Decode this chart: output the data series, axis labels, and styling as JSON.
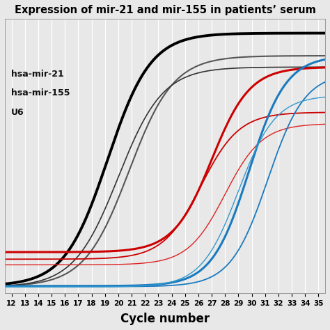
{
  "title": "Expression of mir-21 and mir-155 in patients’ serum",
  "xlabel": "Cycle number",
  "xlim": [
    11.5,
    35.5
  ],
  "xticks": [
    12,
    13,
    14,
    15,
    16,
    17,
    18,
    19,
    20,
    21,
    22,
    23,
    24,
    25,
    26,
    27,
    28,
    29,
    30,
    31,
    32,
    33,
    34,
    35
  ],
  "ylim": [
    -0.02,
    0.95
  ],
  "legend_labels": [
    "hsa-mir-21",
    "hsa-mir-155",
    "U6"
  ],
  "background_color": "#e8e8e8",
  "grid_color": "#ffffff",
  "curves": [
    {
      "color": "#000000",
      "lw": 2.8,
      "midpoint": 19.2,
      "steepness": 0.62,
      "ymax": 0.9,
      "ymin": 0.005
    },
    {
      "color": "#555555",
      "lw": 1.5,
      "midpoint": 20.8,
      "steepness": 0.6,
      "ymax": 0.82,
      "ymin": 0.003
    },
    {
      "color": "#333333",
      "lw": 1.2,
      "midpoint": 20.0,
      "steepness": 0.6,
      "ymax": 0.78,
      "ymin": 0.001
    },
    {
      "color": "#cc0000",
      "lw": 2.2,
      "midpoint": 27.0,
      "steepness": 0.7,
      "ymax": 0.78,
      "ymin": 0.125
    },
    {
      "color": "#cc0000",
      "lw": 1.3,
      "midpoint": 26.2,
      "steepness": 0.7,
      "ymax": 0.62,
      "ymin": 0.1
    },
    {
      "color": "#dd2222",
      "lw": 1.0,
      "midpoint": 28.0,
      "steepness": 0.72,
      "ymax": 0.58,
      "ymin": 0.08
    },
    {
      "color": "#1a7abf",
      "lw": 2.2,
      "midpoint": 29.8,
      "steepness": 0.72,
      "ymax": 0.82,
      "ymin": 0.005
    },
    {
      "color": "#1a7abf",
      "lw": 1.3,
      "midpoint": 31.2,
      "steepness": 0.72,
      "ymax": 0.76,
      "ymin": 0.003
    },
    {
      "color": "#3399cc",
      "lw": 1.0,
      "midpoint": 29.0,
      "steepness": 0.72,
      "ymax": 0.68,
      "ymin": 0.002
    }
  ]
}
